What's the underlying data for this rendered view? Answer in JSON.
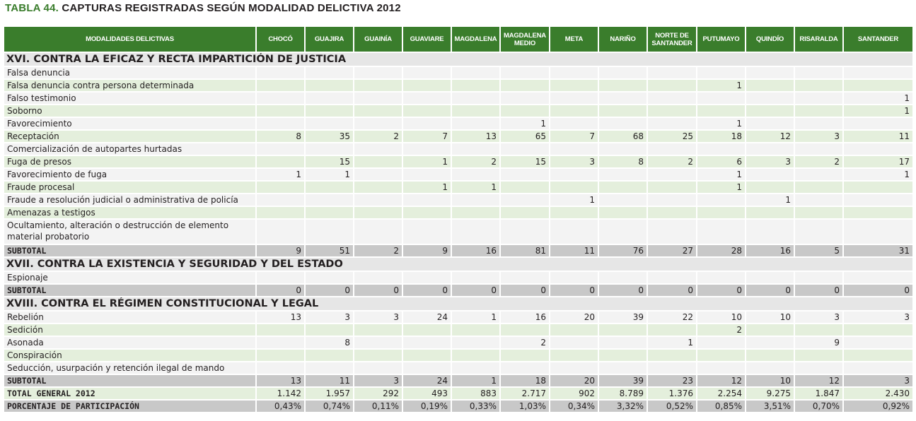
{
  "title": {
    "prefix": "TABLA 44.",
    "text": " CAPTURAS REGISTRADAS SEGÚN MODALIDAD DELICTIVA 2012"
  },
  "header": {
    "first": "MODALIDADES DELICTIVAS",
    "columns": [
      "CHOCÓ",
      "GUAJIRA",
      "GUAINÍA",
      "GUAVIARE",
      "MAGDALENA",
      "MAGDALENA MEDIO",
      "META",
      "NARIÑO",
      "NORTE DE SANTANDER",
      "PUTUMAYO",
      "QUINDÍO",
      "RISARALDA",
      "SANTANDER"
    ]
  },
  "rows": [
    {
      "type": "sec",
      "label": "XVI. CONTRA LA EFICAZ Y RECTA IMPARTICIÓN DE JUSTICIA"
    },
    {
      "type": "item",
      "label": "Falsa denuncia",
      "values": [
        "",
        "",
        "",
        "",
        "",
        "",
        "",
        "",
        "",
        "",
        "",
        "",
        ""
      ]
    },
    {
      "type": "item",
      "label": "Falsa denuncia contra persona determinada",
      "values": [
        "",
        "",
        "",
        "",
        "",
        "",
        "",
        "",
        "",
        "1",
        "",
        "",
        ""
      ]
    },
    {
      "type": "item",
      "label": "Falso testimonio",
      "values": [
        "",
        "",
        "",
        "",
        "",
        "",
        "",
        "",
        "",
        "",
        "",
        "",
        "1"
      ]
    },
    {
      "type": "item",
      "label": "Soborno",
      "values": [
        "",
        "",
        "",
        "",
        "",
        "",
        "",
        "",
        "",
        "",
        "",
        "",
        "1"
      ]
    },
    {
      "type": "item",
      "label": "Favorecimiento",
      "values": [
        "",
        "",
        "",
        "",
        "",
        "1",
        "",
        "",
        "",
        "1",
        "",
        "",
        ""
      ]
    },
    {
      "type": "item",
      "label": "Receptación",
      "values": [
        "8",
        "35",
        "2",
        "7",
        "13",
        "65",
        "7",
        "68",
        "25",
        "18",
        "12",
        "3",
        "11"
      ]
    },
    {
      "type": "item",
      "label": "Comercialización de autopartes hurtadas",
      "values": [
        "",
        "",
        "",
        "",
        "",
        "",
        "",
        "",
        "",
        "",
        "",
        "",
        ""
      ]
    },
    {
      "type": "item",
      "label": "Fuga de presos",
      "values": [
        "",
        "15",
        "",
        "1",
        "2",
        "15",
        "3",
        "8",
        "2",
        "6",
        "3",
        "2",
        "17"
      ]
    },
    {
      "type": "item",
      "label": "Favorecimiento de fuga",
      "values": [
        "1",
        "1",
        "",
        "",
        "",
        "",
        "",
        "",
        "",
        "1",
        "",
        "",
        "1"
      ]
    },
    {
      "type": "item",
      "label": "Fraude procesal",
      "values": [
        "",
        "",
        "",
        "1",
        "1",
        "",
        "",
        "",
        "",
        "1",
        "",
        "",
        ""
      ]
    },
    {
      "type": "item",
      "label": "Fraude a resolución judicial o administrativa de policía",
      "values": [
        "",
        "",
        "",
        "",
        "",
        "",
        "1",
        "",
        "",
        "",
        "1",
        "",
        ""
      ]
    },
    {
      "type": "item",
      "label": "Amenazas a testigos",
      "values": [
        "",
        "",
        "",
        "",
        "",
        "",
        "",
        "",
        "",
        "",
        "",
        "",
        ""
      ]
    },
    {
      "type": "item",
      "tall": true,
      "label": "Ocultamiento, alteración o destrucción de elemento material probatorio",
      "values": [
        "",
        "",
        "",
        "",
        "",
        "",
        "",
        "",
        "",
        "",
        "",
        "",
        ""
      ]
    },
    {
      "type": "sub",
      "label": "SUBTOTAL",
      "values": [
        "9",
        "51",
        "2",
        "9",
        "16",
        "81",
        "11",
        "76",
        "27",
        "28",
        "16",
        "5",
        "31"
      ]
    },
    {
      "type": "sec",
      "label": "XVII. CONTRA LA EXISTENCIA Y SEGURIDAD  Y DEL ESTADO"
    },
    {
      "type": "item",
      "label": "Espionaje",
      "values": [
        "",
        "",
        "",
        "",
        "",
        "",
        "",
        "",
        "",
        "",
        "",
        "",
        ""
      ]
    },
    {
      "type": "sub",
      "label": "SUBTOTAL",
      "values": [
        "0",
        "0",
        "0",
        "0",
        "0",
        "0",
        "0",
        "0",
        "0",
        "0",
        "0",
        "0",
        "0"
      ]
    },
    {
      "type": "sec",
      "label": "XVIII. CONTRA EL RÉGIMEN CONSTITUCIONAL  Y LEGAL"
    },
    {
      "type": "item",
      "label": "Rebelión",
      "values": [
        "13",
        "3",
        "3",
        "24",
        "1",
        "16",
        "20",
        "39",
        "22",
        "10",
        "10",
        "3",
        "3"
      ]
    },
    {
      "type": "item",
      "label": "Sedición",
      "values": [
        "",
        "",
        "",
        "",
        "",
        "",
        "",
        "",
        "",
        "2",
        "",
        "",
        ""
      ]
    },
    {
      "type": "item",
      "label": "Asonada",
      "values": [
        "",
        "8",
        "",
        "",
        "",
        "2",
        "",
        "",
        "1",
        "",
        "",
        "9",
        ""
      ]
    },
    {
      "type": "item",
      "label": "Conspiración",
      "values": [
        "",
        "",
        "",
        "",
        "",
        "",
        "",
        "",
        "",
        "",
        "",
        "",
        ""
      ]
    },
    {
      "type": "item",
      "label": "Seducción, usurpación y retención ilegal de mando",
      "values": [
        "",
        "",
        "",
        "",
        "",
        "",
        "",
        "",
        "",
        "",
        "",
        "",
        ""
      ]
    },
    {
      "type": "sub",
      "label": "SUBTOTAL",
      "values": [
        "13",
        "11",
        "3",
        "24",
        "1",
        "18",
        "20",
        "39",
        "23",
        "12",
        "10",
        "12",
        "3"
      ]
    },
    {
      "type": "tot",
      "label": "TOTAL GENERAL 2012",
      "values": [
        "1.142",
        "1.957",
        "292",
        "493",
        "883",
        "2.717",
        "902",
        "8.789",
        "1.376",
        "2.254",
        "9.275",
        "1.847",
        "2.430"
      ]
    },
    {
      "type": "pct",
      "label": "PORCENTAJE DE PARTICIPACIÓN",
      "values": [
        "0,43%",
        "0,74%",
        "0,11%",
        "0,19%",
        "0,33%",
        "1,03%",
        "0,34%",
        "3,32%",
        "0,52%",
        "0,85%",
        "3,51%",
        "0,70%",
        "0,92%"
      ]
    }
  ],
  "colors": {
    "header_green": "#3a7d2c",
    "row_green": "#e4efdc",
    "row_gray": "#f3f3f3",
    "subtotal_gray": "#c8c8c8"
  }
}
